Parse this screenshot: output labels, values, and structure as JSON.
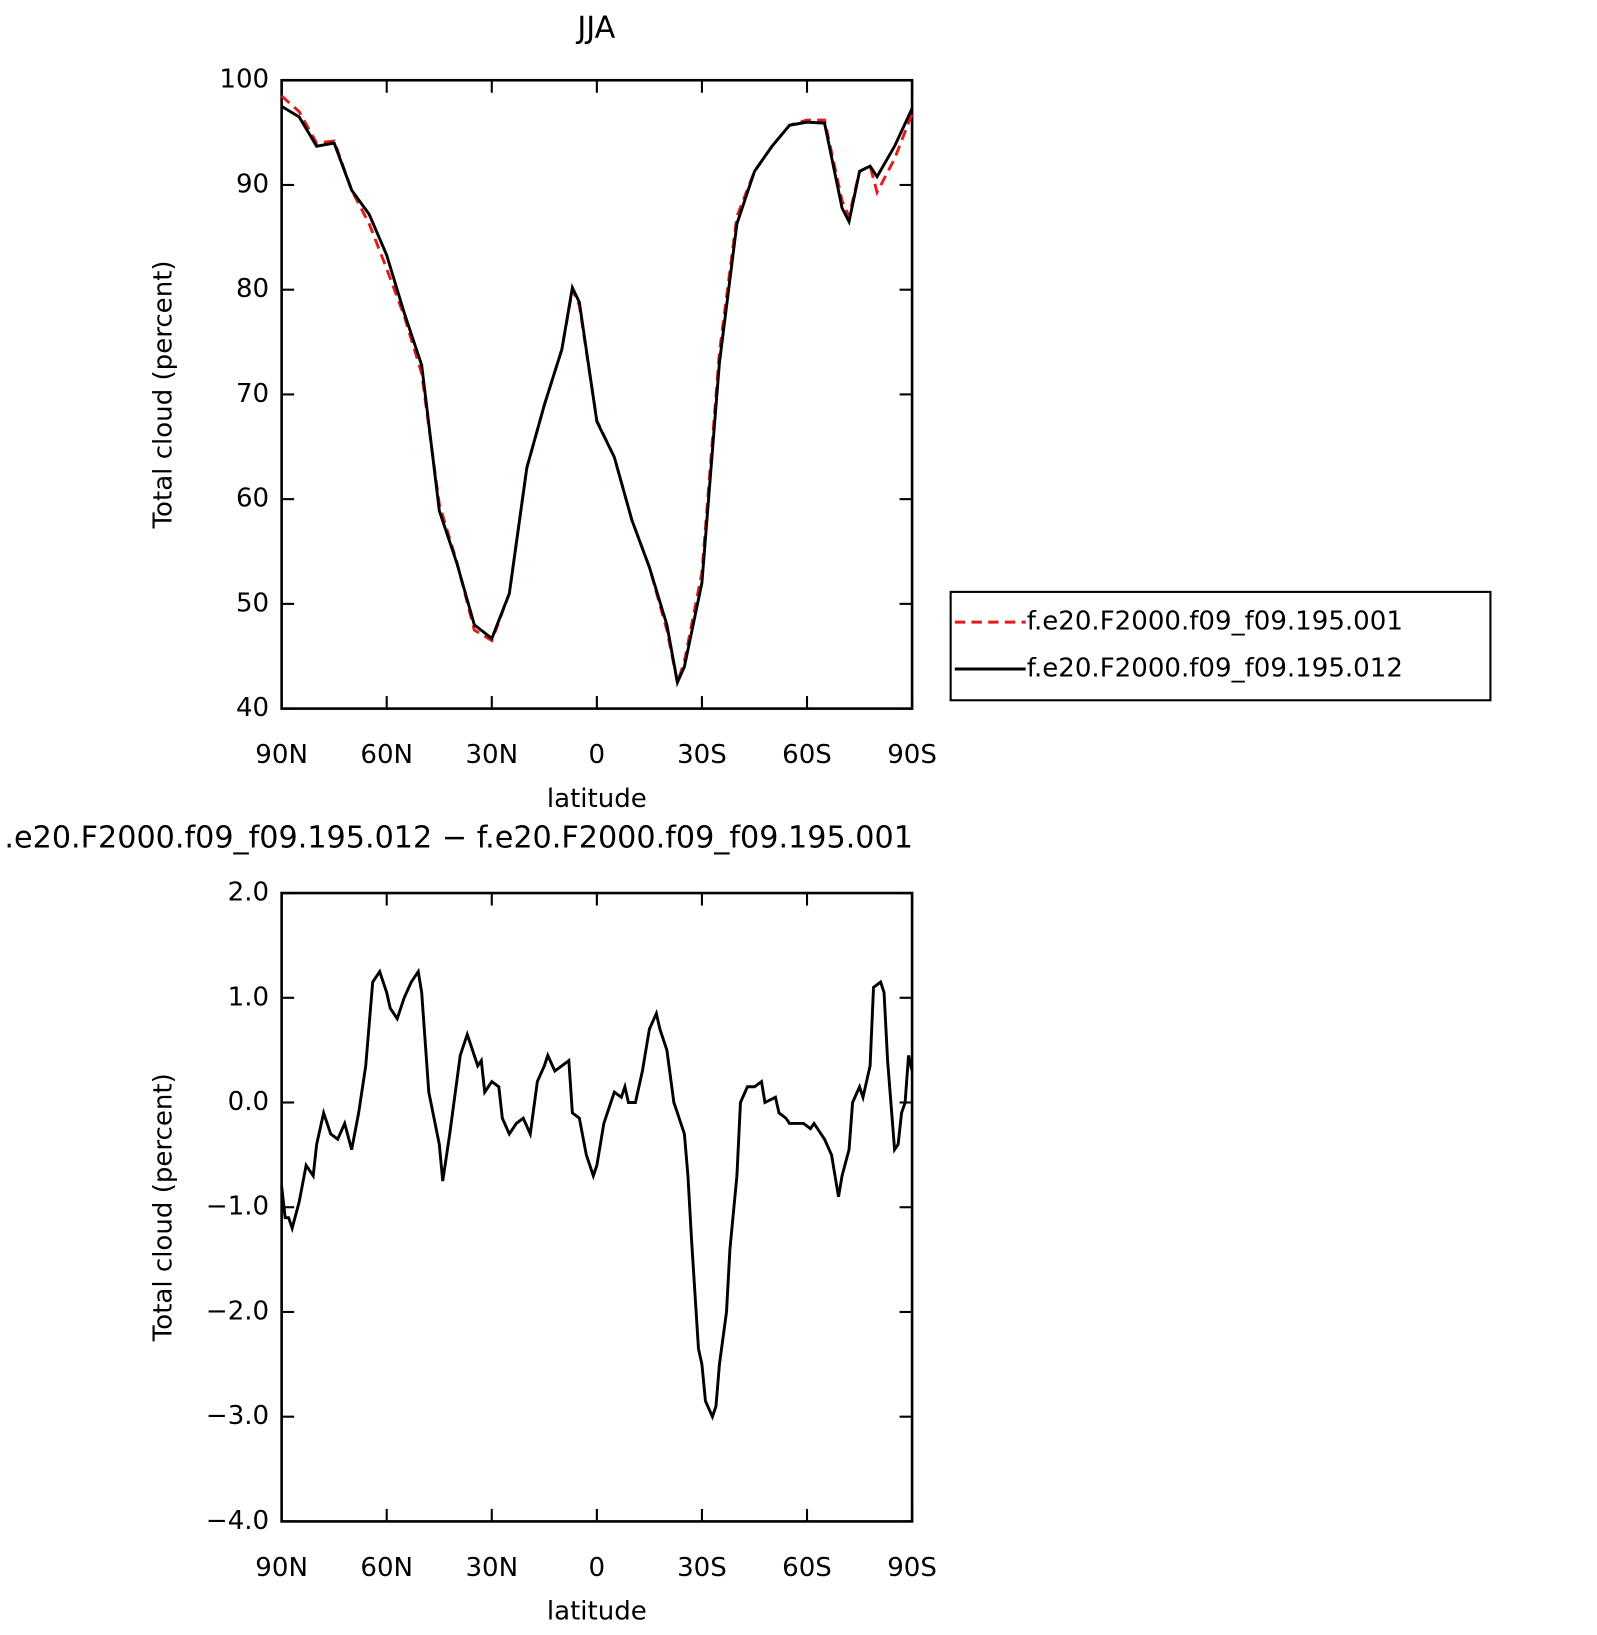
{
  "chart_data": [
    {
      "type": "line",
      "title": "JJA",
      "xlabel": "latitude",
      "ylabel": "Total cloud (percent)",
      "x": [
        90,
        85,
        80,
        75,
        70,
        65,
        60,
        55,
        50,
        45,
        40,
        35,
        30,
        25,
        20,
        15,
        10,
        7,
        5,
        0,
        -5,
        -10,
        -15,
        -20,
        -23,
        -25,
        -30,
        -35,
        -40,
        -45,
        -50,
        -55,
        -60,
        -65,
        -70,
        -72,
        -75,
        -78,
        -80,
        -85,
        -90
      ],
      "series": [
        {
          "name": "f.e20.F2000.f09_f09.195.001",
          "color": "#e41a1c",
          "dash": "dashed",
          "values": [
            98.5,
            97,
            94,
            94.2,
            89.5,
            86.3,
            82,
            77.5,
            72,
            59.5,
            54,
            47.5,
            46.5,
            51,
            63,
            69,
            74.3,
            80,
            78.5,
            67.5,
            64,
            58,
            53.5,
            47.5,
            42.5,
            44.5,
            53,
            74,
            87,
            91.3,
            93.7,
            95.7,
            96.2,
            96.2,
            88.5,
            87,
            91.3,
            91.8,
            89.3,
            92.5,
            96.8
          ]
        },
        {
          "name": "f.e20.F2000.f09_f09.195.012",
          "color": "#000000",
          "dash": "solid",
          "values": [
            97.5,
            96.5,
            93.7,
            94,
            89.5,
            87.2,
            83.3,
            77.8,
            72.8,
            58.9,
            53.9,
            48,
            46.7,
            51,
            63,
            69,
            74.3,
            80.2,
            78.8,
            67.4,
            64,
            58,
            53.5,
            48,
            42.5,
            44,
            52,
            73,
            86.3,
            91.3,
            93.7,
            95.7,
            96,
            95.9,
            87.8,
            86.5,
            91.3,
            91.8,
            90.8,
            93.7,
            97.3
          ]
        }
      ],
      "xlim": [
        90,
        -90
      ],
      "xticks": [
        {
          "value": 90,
          "label": "90N"
        },
        {
          "value": 60,
          "label": "60N"
        },
        {
          "value": 30,
          "label": "30N"
        },
        0,
        {
          "value": -30,
          "label": "30S"
        },
        {
          "value": -60,
          "label": "60S"
        },
        {
          "value": -90,
          "label": "90S"
        }
      ],
      "ylim": [
        40,
        100
      ],
      "yticks": [
        40,
        50,
        60,
        70,
        80,
        90,
        100
      ],
      "legend": "right"
    },
    {
      "type": "line",
      "title": ".e20.F2000.f09_f09.195.012 − f.e20.F2000.f09_f09.195.001",
      "xlabel": "latitude",
      "ylabel": "Total cloud (percent)",
      "x": [
        90,
        89,
        88,
        87,
        85,
        83,
        81,
        80,
        78,
        76,
        74,
        72,
        70,
        68,
        66,
        64,
        62,
        60,
        59,
        57,
        55,
        53,
        51,
        50,
        48,
        45,
        44,
        42,
        39,
        37,
        36,
        34,
        33,
        32,
        30,
        28,
        27,
        25,
        23,
        21,
        19,
        17,
        15,
        14,
        12,
        10,
        8,
        7,
        5,
        3,
        1,
        0,
        -2,
        -4,
        -5,
        -7,
        -8,
        -9,
        -11,
        -13,
        -15,
        -17,
        -18,
        -20,
        -22,
        -23,
        -25,
        -26,
        -27,
        -29,
        -30,
        -31,
        -33,
        -34,
        -35,
        -37,
        -38,
        -40,
        -41,
        -43,
        -45,
        -47,
        -48,
        -51,
        -52,
        -54,
        -55,
        -57,
        -59,
        -61,
        -62,
        -64,
        -65,
        -67,
        -69,
        -70,
        -72,
        -73,
        -75,
        -76,
        -78,
        -79,
        -81,
        -82,
        -83,
        -85,
        -86,
        -87,
        -88,
        -89,
        -90
      ],
      "series": [
        {
          "color": "#000000",
          "dash": "solid",
          "values": [
            -0.8,
            -1.1,
            -1.1,
            -1.2,
            -0.95,
            -0.6,
            -0.7,
            -0.4,
            -0.1,
            -0.3,
            -0.35,
            -0.2,
            -0.45,
            -0.1,
            0.35,
            1.15,
            1.25,
            1.05,
            0.9,
            0.8,
            1.0,
            1.15,
            1.25,
            1.05,
            0.1,
            -0.4,
            -0.75,
            -0.3,
            0.45,
            0.65,
            0.55,
            0.35,
            0.4,
            0.1,
            0.2,
            0.15,
            -0.15,
            -0.3,
            -0.2,
            -0.15,
            -0.3,
            0.2,
            0.35,
            0.45,
            0.3,
            0.35,
            0.4,
            -0.1,
            -0.15,
            -0.5,
            -0.7,
            -0.6,
            -0.2,
            0,
            0.1,
            0.05,
            0.15,
            0,
            0,
            0.3,
            0.7,
            0.85,
            0.7,
            0.5,
            0,
            -0.1,
            -0.3,
            -0.7,
            -1.3,
            -2.35,
            -2.5,
            -2.85,
            -3.0,
            -2.9,
            -2.5,
            -2.0,
            -1.4,
            -0.7,
            0,
            0.15,
            0.15,
            0.2,
            0,
            0.05,
            -0.1,
            -0.15,
            -0.2,
            -0.2,
            -0.2,
            -0.25,
            -0.2,
            -0.3,
            -0.35,
            -0.5,
            -0.9,
            -0.7,
            -0.45,
            0,
            0.15,
            0.05,
            0.35,
            1.1,
            1.15,
            1.05,
            0.4,
            -0.45,
            -0.4,
            -0.1,
            0,
            0.45,
            0.3
          ]
        }
      ],
      "xlim": [
        90,
        -90
      ],
      "xticks": [
        {
          "value": 90,
          "label": "90N"
        },
        {
          "value": 60,
          "label": "60N"
        },
        {
          "value": 30,
          "label": "30N"
        },
        0,
        {
          "value": -30,
          "label": "30S"
        },
        {
          "value": -60,
          "label": "60S"
        },
        {
          "value": -90,
          "label": "90S"
        }
      ],
      "ylim": [
        -4,
        2
      ],
      "yticks": [
        {
          "value": -4,
          "label": "−4.0"
        },
        {
          "value": -3,
          "label": "−3.0"
        },
        {
          "value": -2,
          "label": "−2.0"
        },
        {
          "value": -1,
          "label": "−1.0"
        },
        {
          "value": 0,
          "label": "0.0"
        },
        {
          "value": 1,
          "label": "1.0"
        },
        {
          "value": 2,
          "label": "2.0"
        }
      ]
    }
  ]
}
